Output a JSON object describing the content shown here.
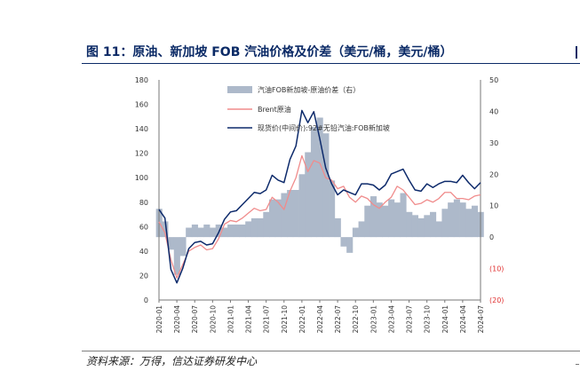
{
  "title": "图 11：原油、新加坡 FOB 汽油价格及价差（美元/桶，美元/桶）",
  "source": "资料来源：万得，信达证券研发中心",
  "chart_data": {
    "type": "line",
    "title": "图 11：原油、新加坡 FOB 汽油价格及价差（美元/桶，美元/桶）",
    "x_ticks": [
      "2020-01",
      "2020-04",
      "2020-07",
      "2020-10",
      "2021-01",
      "2021-04",
      "2021-07",
      "2021-10",
      "2022-01",
      "2022-04",
      "2022-07",
      "2022-10",
      "2023-01",
      "2023-04",
      "2023-07",
      "2023-10",
      "2024-01",
      "2024-04",
      "2024-07"
    ],
    "y_left": {
      "ylim": [
        0,
        180
      ],
      "ticks": [
        "0",
        "20",
        "40",
        "60",
        "80",
        "100",
        "120",
        "140",
        "160",
        "180"
      ]
    },
    "y_right": {
      "ylim": [
        -20,
        50
      ],
      "ticks": [
        "(20)",
        "(10)",
        "0",
        "10",
        "20",
        "30",
        "40",
        "50"
      ]
    },
    "legend_placement": "top-center",
    "grid": false,
    "x_months": [
      0,
      1,
      2,
      3,
      4,
      5,
      6,
      7,
      8,
      9,
      10,
      11,
      12,
      13,
      14,
      15,
      16,
      17,
      18,
      19,
      20,
      21,
      22,
      23,
      24,
      25,
      26,
      27,
      28,
      29,
      30,
      31,
      32,
      33,
      34,
      35,
      36,
      37,
      38,
      39,
      40,
      41,
      42,
      43,
      44,
      45,
      46,
      47,
      48,
      49,
      50,
      51,
      52,
      53,
      54
    ],
    "series": [
      {
        "name": "汽油FOB新加坡-原油价差（右）",
        "axis": "right",
        "kind": "area",
        "color": "#adb9ca",
        "values": [
          9,
          5,
          -4,
          -12,
          -6,
          3,
          4,
          3,
          4,
          3,
          4,
          3,
          4,
          4,
          4,
          5,
          6,
          6,
          8,
          12,
          12,
          14,
          15,
          15,
          20,
          27,
          35,
          38,
          33,
          18,
          6,
          -3,
          -5,
          3,
          5,
          10,
          13,
          11,
          10,
          12,
          11,
          14,
          8,
          7,
          6,
          7,
          8,
          5,
          9,
          11,
          12,
          11,
          9,
          10,
          8
        ]
      },
      {
        "name": "Brent原油",
        "axis": "left",
        "kind": "line",
        "color": "#f08c8c",
        "values": [
          64,
          55,
          33,
          18,
          29,
          40,
          43,
          45,
          41,
          42,
          50,
          62,
          65,
          64,
          67,
          71,
          75,
          73,
          74,
          84,
          80,
          74,
          89,
          100,
          118,
          105,
          114,
          112,
          100,
          98,
          91,
          93,
          84,
          80,
          85,
          83,
          78,
          75,
          80,
          84,
          93,
          90,
          84,
          78,
          79,
          82,
          80,
          83,
          88,
          88,
          83,
          83,
          82,
          85,
          86
        ]
      },
      {
        "name": "现货价(中间价):92#无铅汽油:FOB新加坡",
        "axis": "left",
        "kind": "line",
        "color": "#0d2a6b",
        "values": [
          74,
          67,
          25,
          14,
          26,
          42,
          47,
          48,
          45,
          46,
          55,
          66,
          72,
          73,
          78,
          83,
          88,
          87,
          90,
          102,
          98,
          96,
          115,
          126,
          155,
          145,
          154,
          132,
          108,
          95,
          86,
          90,
          88,
          86,
          95,
          95,
          94,
          90,
          94,
          103,
          105,
          107,
          98,
          90,
          89,
          95,
          92,
          95,
          97,
          97,
          96,
          102,
          96,
          91,
          96
        ]
      }
    ]
  }
}
